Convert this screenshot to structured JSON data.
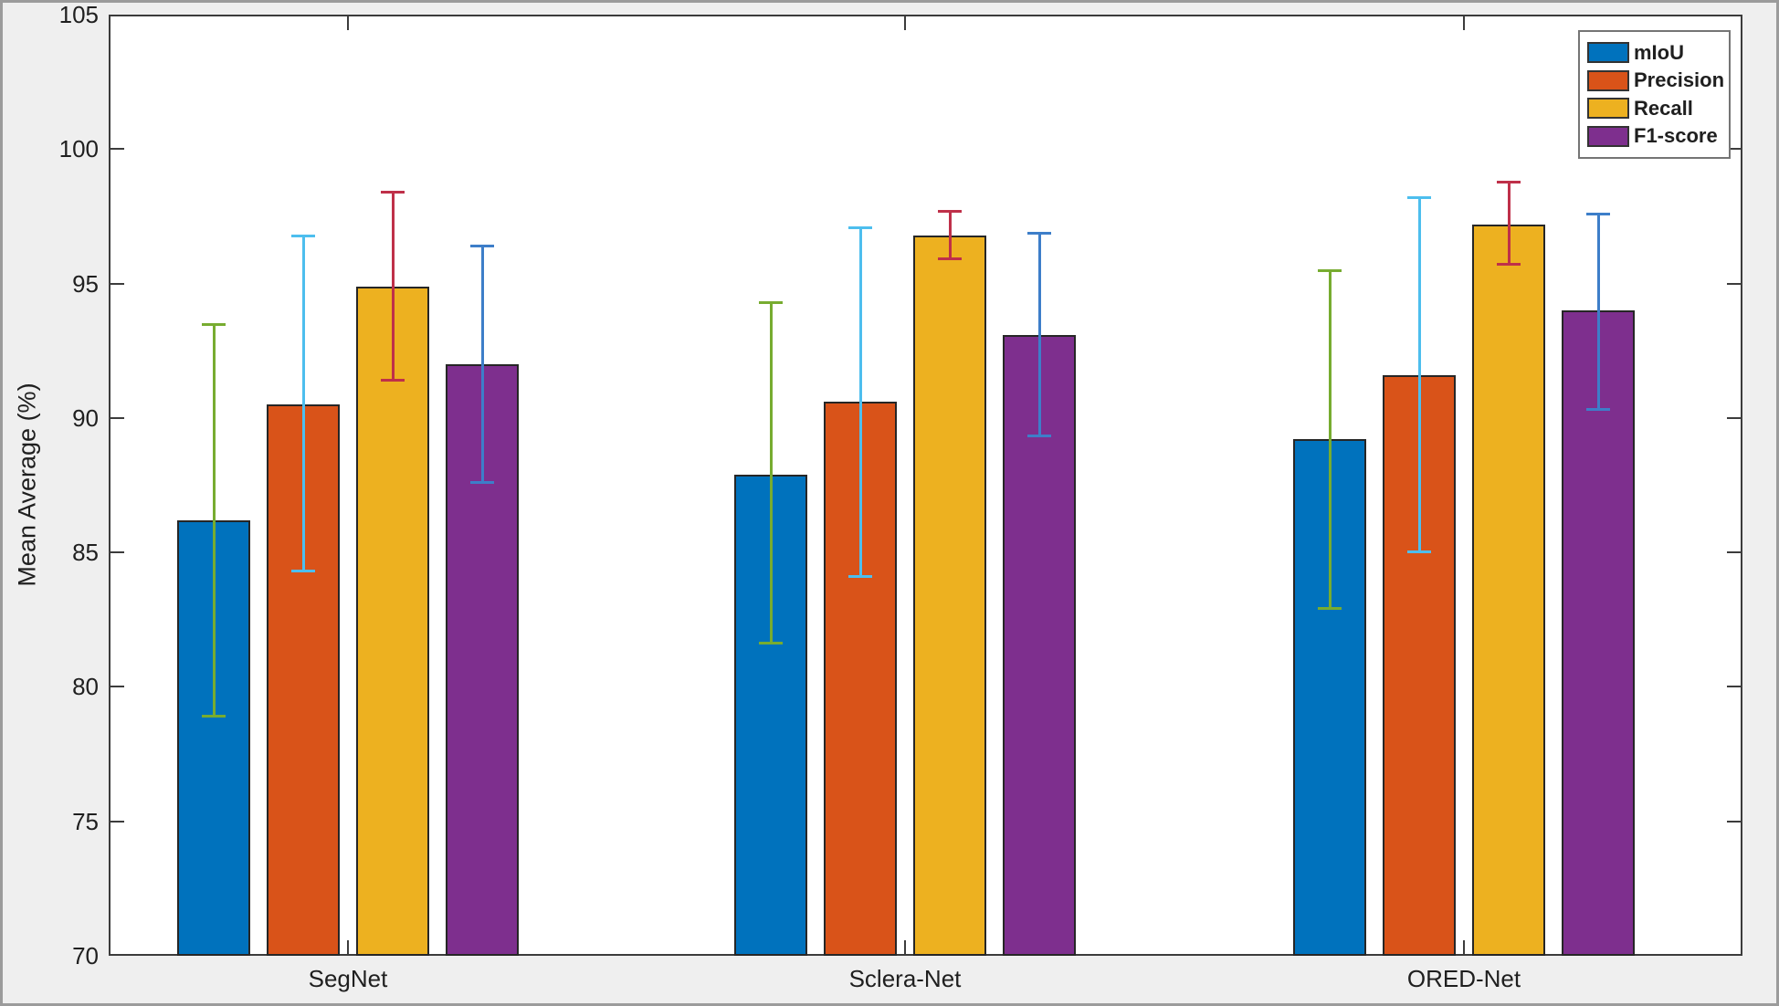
{
  "figure": {
    "background": "#efefef",
    "frame_color": "#9b9b9b",
    "plot_background": "#ffffff",
    "axis_color": "#3c3c3c",
    "text_color": "#1f1f1f"
  },
  "chart_data": {
    "type": "bar",
    "title": "",
    "xlabel": "",
    "ylabel": "Mean Average (%)",
    "ylim": [
      70,
      105
    ],
    "y_ticks": [
      70,
      75,
      80,
      85,
      90,
      95,
      100,
      105
    ],
    "grid": false,
    "legend_position": "top-right",
    "categories": [
      "SegNet",
      "Sclera-Net",
      "ORED-Net"
    ],
    "series": [
      {
        "name": "mIoU",
        "color": "#0072BD",
        "errorbar_color": "#77AC30",
        "values": [
          86.2,
          87.9,
          89.2
        ],
        "error_low": [
          78.9,
          81.6,
          82.9
        ],
        "error_high": [
          93.5,
          94.3,
          95.5
        ]
      },
      {
        "name": "Precision",
        "color": "#D95319",
        "errorbar_color": "#4DBEEE",
        "values": [
          90.5,
          90.6,
          91.6
        ],
        "error_low": [
          84.3,
          84.1,
          85.0
        ],
        "error_high": [
          96.8,
          97.1,
          98.2
        ]
      },
      {
        "name": "Recall",
        "color": "#EDB120",
        "errorbar_color": "#BF3049",
        "values": [
          94.9,
          96.8,
          97.2
        ],
        "error_low": [
          91.4,
          95.9,
          95.7
        ],
        "error_high": [
          98.4,
          97.7,
          98.8
        ]
      },
      {
        "name": "F1-score",
        "color": "#7E2F8E",
        "errorbar_color": "#3D7EC9",
        "values": [
          92.0,
          93.1,
          94.0
        ],
        "error_low": [
          87.6,
          89.3,
          90.3
        ],
        "error_high": [
          96.4,
          96.9,
          97.6
        ]
      }
    ]
  }
}
